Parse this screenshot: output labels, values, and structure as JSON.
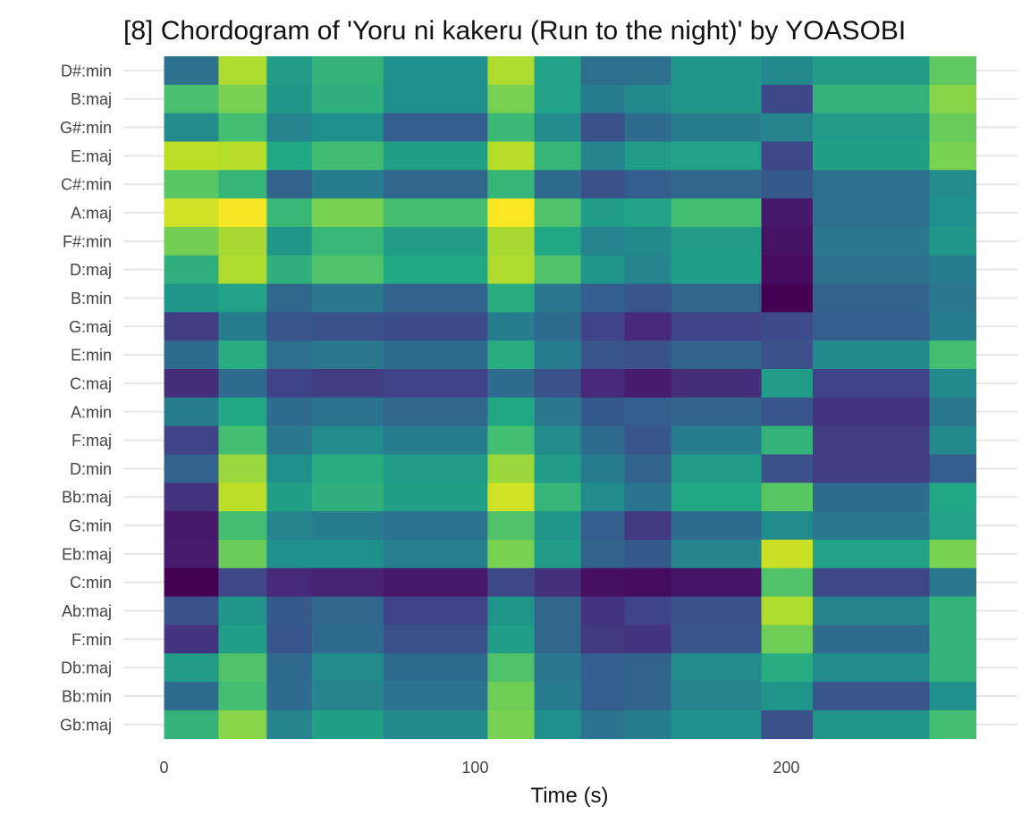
{
  "chart_data": {
    "type": "heatmap",
    "title": "[8] Chordogram of 'Yoru ni kakeru (Run to the night)' by YOASOBI",
    "xlabel": "Time (s)",
    "ylabel": "",
    "xlim": [
      0,
      261
    ],
    "x_ticks": [
      0,
      100,
      200
    ],
    "x_tick_labels": [
      "0",
      "100",
      "200"
    ],
    "grid": "horizontal major lines",
    "colormap": "viridis",
    "time_breaks": [
      0,
      17.5,
      33,
      47.5,
      70.5,
      104,
      119,
      134,
      148,
      163,
      192,
      208.5,
      246,
      261
    ],
    "chords": [
      "D#:min",
      "B:maj",
      "G#:min",
      "E:maj",
      "C#:min",
      "A:maj",
      "F#:min",
      "D:maj",
      "B:min",
      "G:maj",
      "E:min",
      "C:maj",
      "A:min",
      "F:maj",
      "D:min",
      "Bb:maj",
      "G:min",
      "Eb:maj",
      "C:min",
      "Ab:maj",
      "F:min",
      "Db:maj",
      "Bb:min",
      "Gb:maj"
    ],
    "values": [
      [
        0.37,
        0.88,
        0.55,
        0.65,
        0.5,
        0.88,
        0.58,
        0.37,
        0.37,
        0.53,
        0.47,
        0.55,
        0.75
      ],
      [
        0.71,
        0.8,
        0.53,
        0.64,
        0.5,
        0.8,
        0.58,
        0.42,
        0.47,
        0.53,
        0.22,
        0.65,
        0.82
      ],
      [
        0.48,
        0.7,
        0.45,
        0.5,
        0.3,
        0.68,
        0.48,
        0.25,
        0.35,
        0.42,
        0.45,
        0.55,
        0.77
      ],
      [
        0.9,
        0.89,
        0.6,
        0.69,
        0.57,
        0.89,
        0.66,
        0.45,
        0.55,
        0.58,
        0.22,
        0.57,
        0.8
      ],
      [
        0.74,
        0.66,
        0.32,
        0.42,
        0.33,
        0.66,
        0.35,
        0.25,
        0.3,
        0.33,
        0.28,
        0.37,
        0.48
      ],
      [
        0.93,
        0.99,
        0.67,
        0.8,
        0.7,
        1.0,
        0.72,
        0.55,
        0.58,
        0.7,
        0.07,
        0.37,
        0.5
      ],
      [
        0.79,
        0.87,
        0.53,
        0.67,
        0.55,
        0.87,
        0.6,
        0.45,
        0.47,
        0.55,
        0.05,
        0.4,
        0.53
      ],
      [
        0.64,
        0.88,
        0.64,
        0.72,
        0.6,
        0.88,
        0.72,
        0.52,
        0.45,
        0.56,
        0.03,
        0.37,
        0.42
      ],
      [
        0.52,
        0.58,
        0.34,
        0.4,
        0.32,
        0.62,
        0.4,
        0.3,
        0.27,
        0.33,
        0.0,
        0.32,
        0.4
      ],
      [
        0.18,
        0.42,
        0.27,
        0.25,
        0.23,
        0.42,
        0.35,
        0.2,
        0.12,
        0.2,
        0.23,
        0.3,
        0.42
      ],
      [
        0.35,
        0.62,
        0.37,
        0.4,
        0.35,
        0.62,
        0.42,
        0.27,
        0.25,
        0.32,
        0.25,
        0.47,
        0.7
      ],
      [
        0.13,
        0.35,
        0.2,
        0.18,
        0.2,
        0.35,
        0.25,
        0.12,
        0.08,
        0.13,
        0.55,
        0.2,
        0.47
      ],
      [
        0.42,
        0.6,
        0.35,
        0.38,
        0.33,
        0.6,
        0.4,
        0.28,
        0.3,
        0.32,
        0.27,
        0.15,
        0.4
      ],
      [
        0.2,
        0.7,
        0.4,
        0.48,
        0.42,
        0.7,
        0.48,
        0.35,
        0.27,
        0.42,
        0.65,
        0.18,
        0.47
      ],
      [
        0.32,
        0.85,
        0.5,
        0.62,
        0.55,
        0.85,
        0.55,
        0.42,
        0.32,
        0.55,
        0.25,
        0.18,
        0.3
      ],
      [
        0.15,
        0.9,
        0.57,
        0.64,
        0.57,
        0.93,
        0.66,
        0.48,
        0.38,
        0.6,
        0.74,
        0.35,
        0.6
      ],
      [
        0.07,
        0.7,
        0.45,
        0.42,
        0.38,
        0.72,
        0.53,
        0.3,
        0.17,
        0.35,
        0.48,
        0.4,
        0.58
      ],
      [
        0.08,
        0.77,
        0.5,
        0.5,
        0.43,
        0.8,
        0.55,
        0.32,
        0.28,
        0.45,
        0.92,
        0.58,
        0.8
      ],
      [
        0.0,
        0.22,
        0.12,
        0.1,
        0.07,
        0.22,
        0.14,
        0.04,
        0.03,
        0.06,
        0.72,
        0.22,
        0.4
      ],
      [
        0.25,
        0.52,
        0.28,
        0.33,
        0.2,
        0.52,
        0.33,
        0.15,
        0.2,
        0.25,
        0.88,
        0.45,
        0.65
      ],
      [
        0.15,
        0.56,
        0.27,
        0.35,
        0.25,
        0.56,
        0.33,
        0.17,
        0.15,
        0.27,
        0.78,
        0.35,
        0.65
      ],
      [
        0.55,
        0.72,
        0.35,
        0.48,
        0.35,
        0.72,
        0.4,
        0.3,
        0.32,
        0.48,
        0.62,
        0.48,
        0.65
      ],
      [
        0.35,
        0.7,
        0.35,
        0.45,
        0.38,
        0.78,
        0.42,
        0.3,
        0.32,
        0.45,
        0.52,
        0.27,
        0.5
      ],
      [
        0.65,
        0.82,
        0.45,
        0.57,
        0.47,
        0.8,
        0.5,
        0.38,
        0.42,
        0.5,
        0.25,
        0.52,
        0.7
      ]
    ]
  }
}
